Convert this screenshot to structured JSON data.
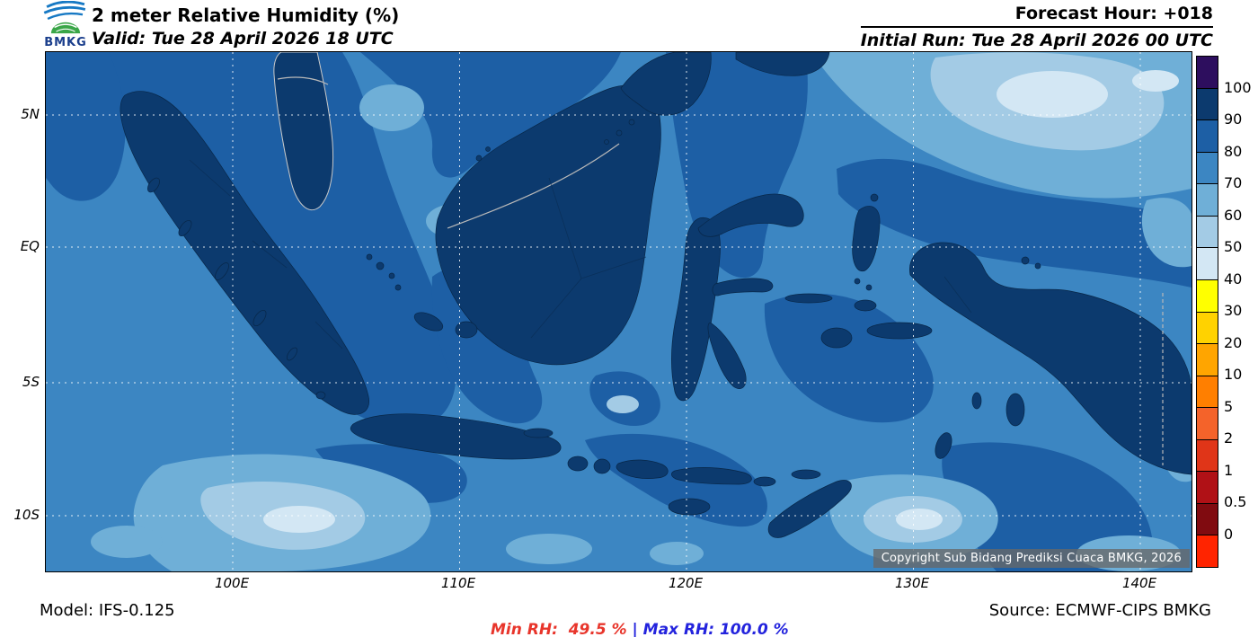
{
  "header": {
    "logo_text": "BMKG",
    "title": "2 meter Relative Humidity (%)",
    "valid_line": "Valid: Tue 28 April 2026 18 UTC",
    "forecast_hour": "Forecast Hour: +018",
    "initial_run": "Initial Run: Tue 28 April 2026 00 UTC"
  },
  "map": {
    "lat_labels": [
      "5N",
      "EQ",
      "5S",
      "10S"
    ],
    "lon_labels": [
      "100E",
      "110E",
      "120E",
      "130E",
      "140E"
    ],
    "copyright": "Copyright Sub Bidang Prediksi Cuaca BMKG, 2026"
  },
  "colorbar": {
    "unit": "%",
    "tick_labels": [
      "100",
      "90",
      "80",
      "70",
      "60",
      "50",
      "40",
      "30",
      "20",
      "10",
      "5",
      "2",
      "1",
      "0.5",
      "0"
    ],
    "cell_colors_top_to_bottom": [
      "#2d0e5e",
      "#0c3a6e",
      "#1d5fa5",
      "#3c86c2",
      "#6fafd7",
      "#a3cbe5",
      "#d3e7f4",
      "#ffff00",
      "#ffd200",
      "#ffa500",
      "#ff7f00",
      "#f4632a",
      "#e03518",
      "#b01116",
      "#800b10",
      "#ff2400"
    ]
  },
  "footer": {
    "model": "Model: IFS-0.125",
    "min_rh": "Min RH:  49.5 %",
    "separator": "|",
    "max_rh": "Max RH: 100.0 %",
    "source": "Source: ECMWF-CIPS BMKG"
  },
  "colors": {
    "band_90": "#0c3a6e",
    "band_80": "#1d5fa5",
    "band_70": "#3c86c2",
    "band_60": "#6fafd7",
    "band_50": "#a3cbe5",
    "band_40": "#d3e7f4",
    "min_rh_text": "#e8352b",
    "max_rh_text": "#2323dd",
    "logo_blue": "#1779c4",
    "logo_green": "#3aa648",
    "logo_text": "#1a3e8c"
  }
}
